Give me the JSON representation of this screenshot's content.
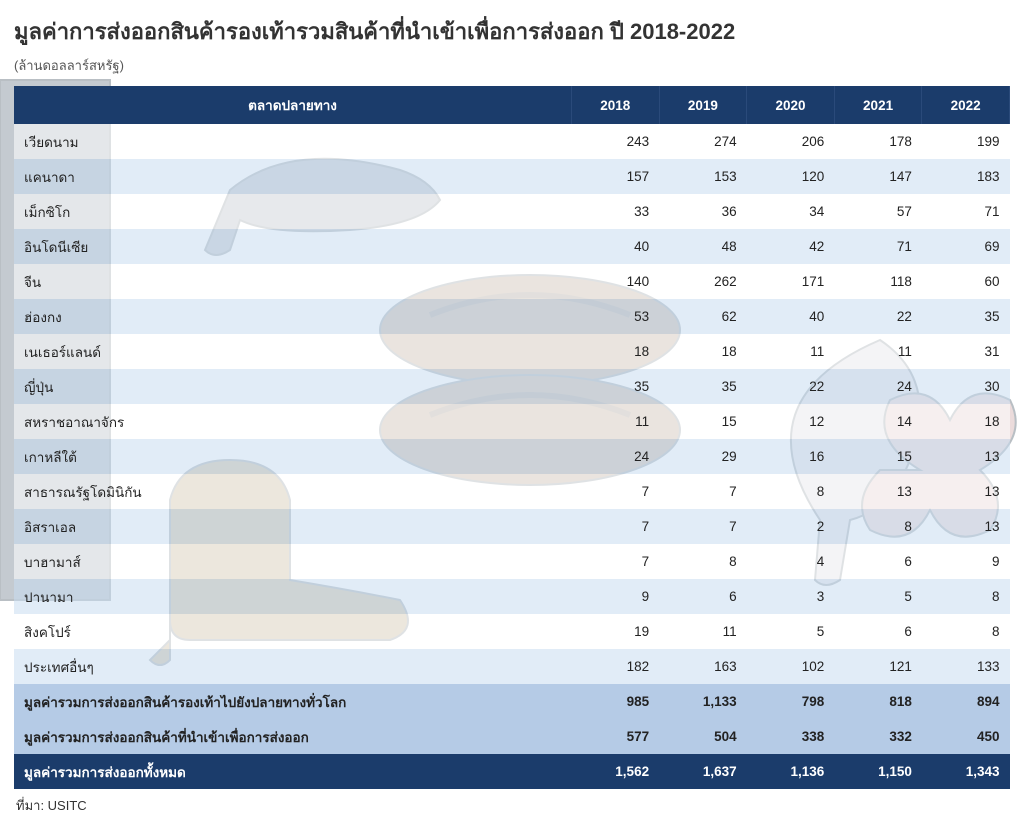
{
  "title": "มูลค่าการส่งออกสินค้ารองเท้ารวมสินค้าที่นำเข้าเพื่อการส่งออก ปี 2018-2022",
  "subtitle": "(ล้านดอลลาร์สหรัฐ)",
  "source": "ที่มา: USITC",
  "columns": {
    "market": "ตลาดปลายทาง",
    "y2018": "2018",
    "y2019": "2019",
    "y2020": "2020",
    "y2021": "2021",
    "y2022": "2022"
  },
  "rows": [
    {
      "label": "เวียดนาม",
      "v": [
        "243",
        "274",
        "206",
        "178",
        "199"
      ]
    },
    {
      "label": "แคนาดา",
      "v": [
        "157",
        "153",
        "120",
        "147",
        "183"
      ]
    },
    {
      "label": "เม็กซิโก",
      "v": [
        "33",
        "36",
        "34",
        "57",
        "71"
      ]
    },
    {
      "label": "อินโดนีเซีย",
      "v": [
        "40",
        "48",
        "42",
        "71",
        "69"
      ]
    },
    {
      "label": "จีน",
      "v": [
        "140",
        "262",
        "171",
        "118",
        "60"
      ]
    },
    {
      "label": "ฮ่องกง",
      "v": [
        "53",
        "62",
        "40",
        "22",
        "35"
      ]
    },
    {
      "label": "เนเธอร์แลนด์",
      "v": [
        "18",
        "18",
        "11",
        "11",
        "31"
      ]
    },
    {
      "label": "ญี่ปุ่น",
      "v": [
        "35",
        "35",
        "22",
        "24",
        "30"
      ]
    },
    {
      "label": "สหราชอาณาจักร",
      "v": [
        "11",
        "15",
        "12",
        "14",
        "18"
      ]
    },
    {
      "label": "เกาหลีใต้",
      "v": [
        "24",
        "29",
        "16",
        "15",
        "13"
      ]
    },
    {
      "label": "สาธารณรัฐโดมินิกัน",
      "v": [
        "7",
        "7",
        "8",
        "13",
        "13"
      ]
    },
    {
      "label": "อิสราเอล",
      "v": [
        "7",
        "7",
        "2",
        "8",
        "13"
      ]
    },
    {
      "label": "บาฮามาส์",
      "v": [
        "7",
        "8",
        "4",
        "6",
        "9"
      ]
    },
    {
      "label": "ปานามา",
      "v": [
        "9",
        "6",
        "3",
        "5",
        "8"
      ]
    },
    {
      "label": "สิงคโปร์",
      "v": [
        "19",
        "11",
        "5",
        "6",
        "8"
      ]
    },
    {
      "label": "ประเทศอื่นๆ",
      "v": [
        "182",
        "163",
        "102",
        "121",
        "133"
      ]
    }
  ],
  "subtotals": [
    {
      "label": "มูลค่ารวมการส่งออกสินค้ารองเท้าไปยังปลายทางทั่วโลก",
      "v": [
        "985",
        "1,133",
        "798",
        "818",
        "894"
      ]
    },
    {
      "label": "มูลค่ารวมการส่งออกสินค้าที่นำเข้าเพื่อการส่งออก",
      "v": [
        "577",
        "504",
        "338",
        "332",
        "450"
      ]
    }
  ],
  "grand": {
    "label": "มูลค่ารวมการส่งออกทั้งหมด",
    "v": [
      "1,562",
      "1,637",
      "1,136",
      "1,150",
      "1,343"
    ]
  },
  "style": {
    "header_bg": "#1b3c6b",
    "header_fg": "#ffffff",
    "row_even_bg": "rgba(255,255,255,0.55)",
    "row_odd_bg": "rgba(200,220,240,0.55)",
    "subtotal_bg": "rgba(120,160,210,0.55)",
    "grand_bg": "#1b3c6b",
    "grand_fg": "#ffffff",
    "title_fontsize": 22,
    "body_fontsize": 13.5
  }
}
